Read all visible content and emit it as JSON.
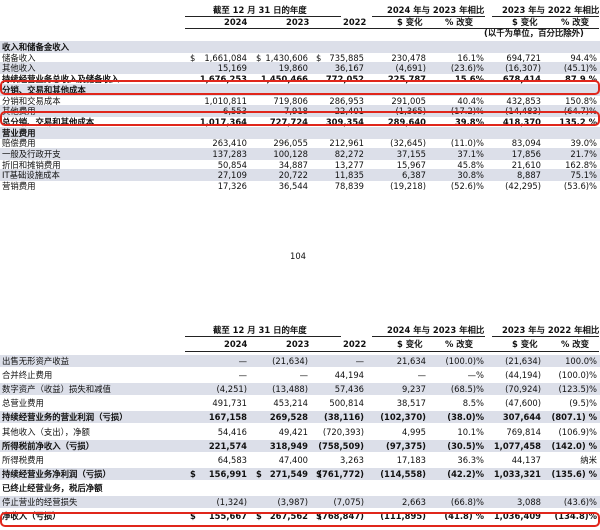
{
  "top": {
    "header": {
      "period": "截至 12 月 31 日的年度",
      "cmp1": "2024 年与 2023 年相比",
      "cmp2": "2023 年与 2022 年相比",
      "y2024": "2024",
      "y2023": "2023",
      "y2022": "2022",
      "chg": "$ 变化",
      "pct": "% 改变",
      "unit": "(以千为单位，百分比除外)"
    },
    "rows": [
      {
        "label": "收入和储备金收入",
        "sect": true,
        "shade": true,
        "v": [
          "",
          "",
          "",
          "",
          "",
          "",
          ""
        ]
      },
      {
        "label": "储备收入",
        "dollar": true,
        "v": [
          "1,661,084",
          "1,430,606",
          "735,885",
          "230,478",
          "16.1%",
          "694,721",
          "94.4%"
        ]
      },
      {
        "label": "其他收入",
        "shade": true,
        "v": [
          "15,169",
          "19,860",
          "36,167",
          "(4,691)",
          "(23.6)%",
          "(16,307)",
          "(45.1)%"
        ]
      },
      {
        "label": "持续经营业务总收入及储备收入",
        "bold": true,
        "v": [
          "1,676,253",
          "1,450,466",
          "772,052",
          "225,787",
          "15.6%",
          "678,414",
          "87.9 %"
        ]
      },
      {
        "label": "分销、交易和其他成本",
        "sect": true,
        "shade": true,
        "v": [
          "",
          "",
          "",
          "",
          "",
          "",
          ""
        ]
      },
      {
        "label": "分销和交易成本",
        "v": [
          "1,010,811",
          "719,806",
          "286,953",
          "291,005",
          "40.4%",
          "432,853",
          "150.8%"
        ]
      },
      {
        "label": "其他费用",
        "shade": true,
        "v": [
          "6,553",
          "7,918",
          "22,401",
          "(1,365)",
          "(17.2)%",
          "(14,483)",
          "(64.7)%"
        ]
      },
      {
        "label": "总分销、交易和其他成本",
        "bold": true,
        "v": [
          "1,017,364",
          "727,724",
          "309,354",
          "289,640",
          "39.8%",
          "418,370",
          "135.2 %"
        ]
      },
      {
        "label": "营业费用",
        "sect": true,
        "shade": true,
        "v": [
          "",
          "",
          "",
          "",
          "",
          "",
          ""
        ]
      },
      {
        "label": "赔偿费用",
        "v": [
          "263,410",
          "296,055",
          "212,961",
          "(32,645)",
          "(11.0)%",
          "83,094",
          "39.0%"
        ]
      },
      {
        "label": "一般及行政开支",
        "shade": true,
        "v": [
          "137,283",
          "100,128",
          "82,272",
          "37,155",
          "37.1%",
          "17,856",
          "21.7%"
        ]
      },
      {
        "label": "折旧和摊销费用",
        "v": [
          "50,854",
          "34,887",
          "13,277",
          "15,967",
          "45.8%",
          "21,610",
          "162.8%"
        ]
      },
      {
        "label": "IT基础设施成本",
        "shade": true,
        "v": [
          "27,109",
          "20,722",
          "11,835",
          "6,387",
          "30.8%",
          "8,887",
          "75.1%"
        ]
      },
      {
        "label": "营销费用",
        "v": [
          "17,326",
          "36,544",
          "78,839",
          "(19,218)",
          "(52.6)%",
          "(42,295)",
          "(53.6)%"
        ]
      }
    ]
  },
  "page_number": "104",
  "bottom": {
    "header": {
      "period": "截至 12 月 31 日的年度",
      "cmp1": "2024 年与 2023 年相比",
      "cmp2": "2023 年与 2022 年相比",
      "y2024": "2024",
      "y2023": "2023",
      "y2022": "2022",
      "chg": "$ 变化",
      "pct": "% 改变"
    },
    "rows": [
      {
        "label": "出售无形资产收益",
        "shade": true,
        "v": [
          "—",
          "(21,634)",
          "—",
          "21,634",
          "(100.0)%",
          "(21,634)",
          "100.0%"
        ]
      },
      {
        "label": "合并终止费用",
        "v": [
          "—",
          "—",
          "44,194",
          "—",
          "—%",
          "(44,194)",
          "(100.0)%"
        ]
      },
      {
        "label": "数字资产（收益）损失和减值",
        "shade": true,
        "v": [
          "(4,251)",
          "(13,488)",
          "57,436",
          "9,237",
          "(68.5)%",
          "(70,924)",
          "(123.5)%"
        ]
      },
      {
        "label": "总营业费用",
        "v": [
          "491,731",
          "453,214",
          "500,814",
          "38,517",
          "8.5%",
          "(47,600)",
          "(9.5)%"
        ]
      },
      {
        "label": "持续经营业务的营业利润（亏损）",
        "bold": true,
        "shade": true,
        "v": [
          "167,158",
          "269,528",
          "(38,116)",
          "(102,370)",
          "(38.0)%",
          "307,644",
          "(807.1) %"
        ]
      },
      {
        "label": "其他收入（支出），净额",
        "v": [
          "54,416",
          "49,421",
          "(720,393)",
          "4,995",
          "10.1%",
          "769,814",
          "(106.9)%"
        ]
      },
      {
        "label": "所得税前净收入（亏损）",
        "bold": true,
        "shade": true,
        "v": [
          "221,574",
          "318,949",
          "(758,509)",
          "(97,375)",
          "(30.5)%",
          "1,077,458",
          "(142.0) %"
        ]
      },
      {
        "label": "所得税费用",
        "v": [
          "64,583",
          "47,400",
          "3,263",
          "17,183",
          "36.3%",
          "44,137",
          "纳米"
        ]
      },
      {
        "label": "持续经营业务净利润（亏损）",
        "bold": true,
        "shade": true,
        "dollar": true,
        "v": [
          "156,991",
          "271,549",
          "(761,772)",
          "(114,558)",
          "(42.2)%",
          "1,033,321",
          "(135.6) %"
        ]
      },
      {
        "label": "已终止经营业务，税后净额",
        "sect": true,
        "v": [
          "",
          "",
          "",
          "",
          "",
          "",
          ""
        ]
      },
      {
        "label": "停止营业的经营损失",
        "shade": true,
        "v": [
          "(1,324)",
          "(3,987)",
          "(7,075)",
          "2,663",
          "(66.8)%",
          "3,088",
          "(43.6)%"
        ]
      },
      {
        "label": "净收入（亏损）",
        "bold": true,
        "dollar": true,
        "v": [
          "155,667",
          "267,562",
          "(768,847)",
          "(111,895)",
          "(41.8) %",
          "1,036,409",
          "(134.8)%"
        ]
      }
    ]
  }
}
